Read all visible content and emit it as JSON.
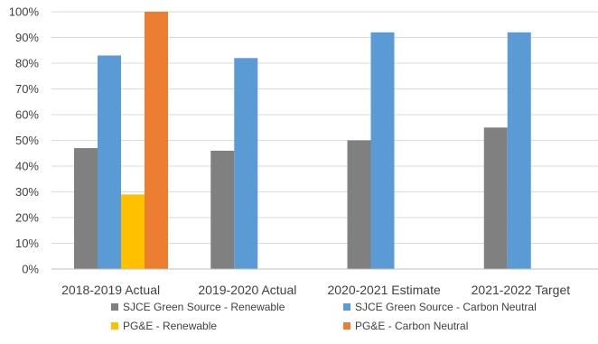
{
  "chart_data": {
    "type": "bar",
    "title": "",
    "xlabel": "",
    "ylabel": "",
    "categories": [
      "2018-2019 Actual",
      "2019-2020 Actual",
      "2020-2021 Estimate",
      "2021-2022 Target"
    ],
    "ylim": [
      0,
      100
    ],
    "yticks": [
      0,
      10,
      20,
      30,
      40,
      50,
      60,
      70,
      80,
      90,
      100
    ],
    "ytick_suffix": "%",
    "grid": true,
    "legend_position": "bottom",
    "series": [
      {
        "name": "SJCE Green Source - Renewable",
        "color": "#808080",
        "values": [
          47,
          46,
          50,
          55
        ]
      },
      {
        "name": "SJCE Green Source - Carbon Neutral",
        "color": "#5b9bd5",
        "values": [
          83,
          82,
          92,
          92
        ]
      },
      {
        "name": "PG&E - Renewable",
        "color": "#ffc000",
        "values": [
          29,
          null,
          null,
          null
        ]
      },
      {
        "name": "PG&E - Carbon Neutral",
        "color": "#ed7d31",
        "values": [
          100,
          null,
          null,
          null
        ]
      }
    ]
  }
}
